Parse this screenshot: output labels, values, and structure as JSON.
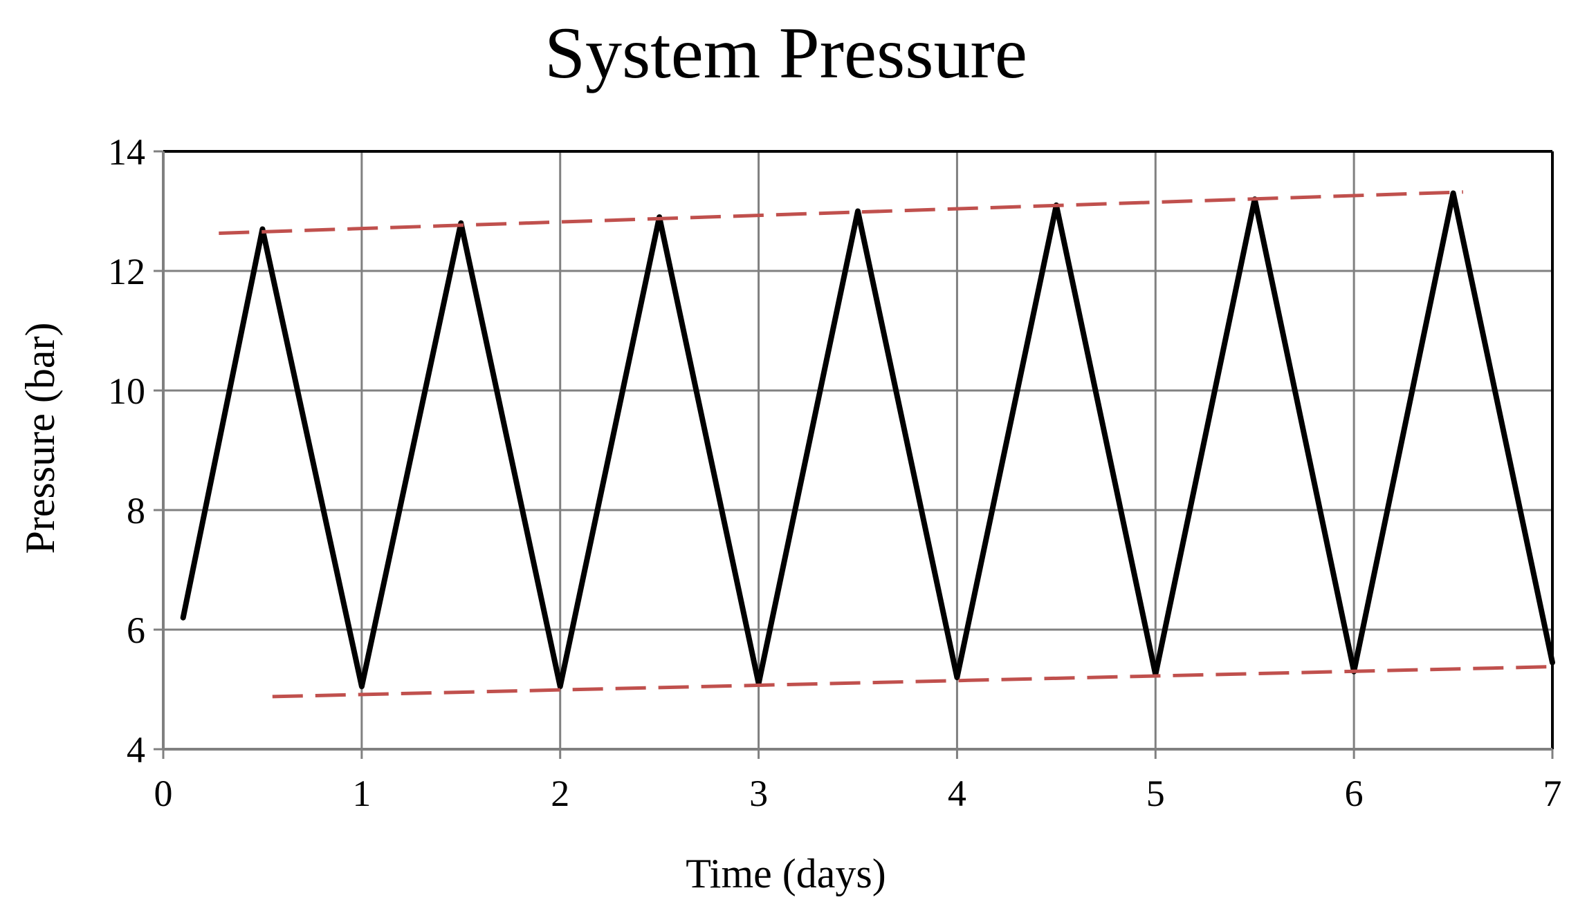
{
  "chart_data": {
    "type": "line",
    "title": "System Pressure",
    "xlabel": "Time (days)",
    "ylabel": "Pressure (bar)",
    "xlim": [
      0,
      7
    ],
    "ylim": [
      4,
      14
    ],
    "x_ticks": [
      0,
      1,
      2,
      3,
      4,
      5,
      6,
      7
    ],
    "y_ticks": [
      4,
      6,
      8,
      10,
      12,
      14
    ],
    "grid": true,
    "legend": "none",
    "colors": {
      "pressure": "#000000",
      "envelope": "#c0504d",
      "grid": "#808080"
    },
    "series": [
      {
        "style": "solid",
        "points": [
          [
            0.1,
            6.2
          ],
          [
            0.5,
            12.7
          ],
          [
            1.0,
            5.05
          ],
          [
            1.5,
            12.8
          ],
          [
            2.0,
            5.05
          ],
          [
            2.5,
            12.9
          ],
          [
            3.0,
            5.1
          ],
          [
            3.5,
            13.0
          ],
          [
            4.0,
            5.2
          ],
          [
            4.5,
            13.1
          ],
          [
            5.0,
            5.25
          ],
          [
            5.5,
            13.2
          ],
          [
            6.0,
            5.3
          ],
          [
            6.5,
            13.3
          ],
          [
            7.0,
            5.45
          ]
        ]
      },
      {
        "style": "dashed",
        "points": [
          [
            0.28,
            12.63
          ],
          [
            6.55,
            13.32
          ]
        ]
      },
      {
        "style": "dashed",
        "points": [
          [
            0.55,
            4.88
          ],
          [
            7.0,
            5.38
          ]
        ]
      }
    ]
  }
}
